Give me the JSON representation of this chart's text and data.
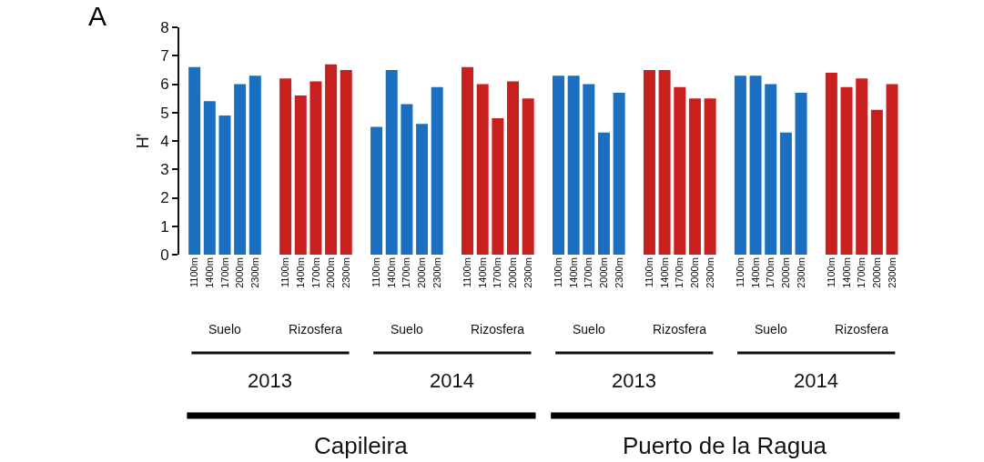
{
  "chart_data": {
    "type": "bar",
    "ylabel": "H'",
    "categories": [
      "1100m",
      "1400m",
      "1700m",
      "2000m",
      "2300m",
      null,
      "1100m",
      "1400m",
      "1700m",
      "2000m",
      "2300m",
      null,
      "1100m",
      "1400m",
      "1700m",
      "2000m",
      "2300m",
      null,
      "1100m",
      "1400m",
      "1700m",
      "2000m",
      "2300m",
      null,
      "1100m",
      "1400m",
      "1700m",
      "2000m",
      "2300m",
      null,
      "1100m",
      "1400m",
      "1700m",
      "2000m",
      "2300m",
      null,
      "1100m",
      "1400m",
      "1700m",
      "2000m",
      "2300m",
      null,
      "1100m",
      "1400m",
      "1700m",
      "2000m",
      "2300m"
    ],
    "values": [
      6.6,
      5.4,
      4.9,
      6.0,
      6.3,
      null,
      6.2,
      5.6,
      6.1,
      6.7,
      6.5,
      null,
      4.5,
      6.5,
      5.3,
      4.6,
      5.9,
      null,
      6.6,
      6.0,
      4.8,
      6.1,
      5.5,
      null,
      6.3,
      6.3,
      6.0,
      4.3,
      5.7,
      null,
      6.5,
      6.5,
      5.9,
      5.5,
      5.5,
      null,
      6.3,
      6.3,
      6.0,
      4.3,
      5.7,
      null,
      6.4,
      5.9,
      6.2,
      5.1,
      6.0
    ],
    "colors": [
      "#1a6fc1",
      "#1a6fc1",
      "#1a6fc1",
      "#1a6fc1",
      "#1a6fc1",
      null,
      "#c8201f",
      "#c8201f",
      "#c8201f",
      "#c8201f",
      "#c8201f",
      null,
      "#1a6fc1",
      "#1a6fc1",
      "#1a6fc1",
      "#1a6fc1",
      "#1a6fc1",
      null,
      "#c8201f",
      "#c8201f",
      "#c8201f",
      "#c8201f",
      "#c8201f",
      null,
      "#1a6fc1",
      "#1a6fc1",
      "#1a6fc1",
      "#1a6fc1",
      "#1a6fc1",
      null,
      "#c8201f",
      "#c8201f",
      "#c8201f",
      "#c8201f",
      "#c8201f",
      null,
      "#1a6fc1",
      "#1a6fc1",
      "#1a6fc1",
      "#1a6fc1",
      "#1a6fc1",
      null,
      "#c8201f",
      "#c8201f",
      "#c8201f",
      "#c8201f",
      "#c8201f"
    ],
    "ylim": [
      0,
      8
    ],
    "yticks": [
      0,
      1,
      2,
      3,
      4,
      5,
      6,
      7,
      8
    ],
    "grid": false,
    "annotations": [
      "Suelo",
      "Rizosfera",
      "Suelo",
      "Rizosfera",
      "Suelo",
      "Rizosfera",
      "Suelo",
      "Rizosfera",
      "2013",
      "2014",
      "2013",
      "2014",
      "Capileira",
      "Puerto de la Ragua",
      "A"
    ]
  }
}
